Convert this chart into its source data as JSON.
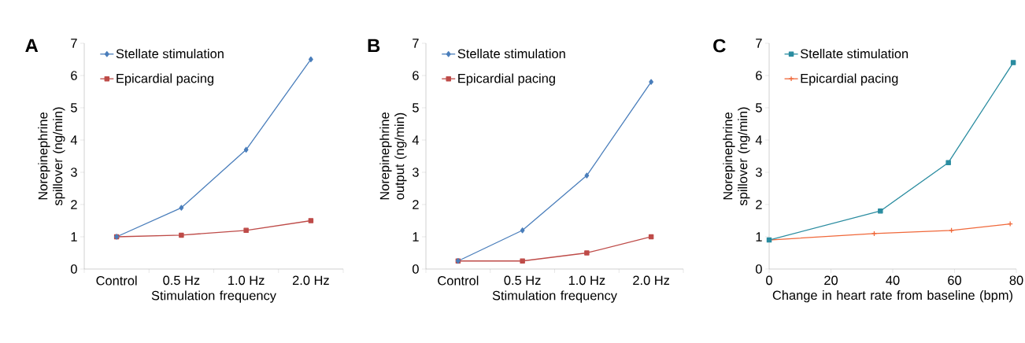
{
  "chart_data": [
    {
      "type": "line",
      "title": "A",
      "xlabel": "Stimulation frequency",
      "ylabel": "Norepinephrine spillover (ng/min)",
      "categories": [
        "Control",
        "0.5 Hz",
        "1.0 Hz",
        "2.0 Hz"
      ],
      "ylim": [
        0,
        7
      ],
      "yticks": [
        0,
        1,
        2,
        3,
        4,
        5,
        6,
        7
      ],
      "legend": "top left",
      "series": [
        {
          "name": "Stellate stimulation",
          "color": "#4a7ebb",
          "marker": "diamond",
          "values": [
            1.0,
            1.9,
            3.7,
            6.5
          ]
        },
        {
          "name": "Epicardial pacing",
          "color": "#be4b48",
          "marker": "square",
          "values": [
            1.0,
            1.05,
            1.2,
            1.5
          ]
        }
      ]
    },
    {
      "type": "line",
      "title": "B",
      "xlabel": "Stimulation frequency",
      "ylabel": "Norepinephrine output (ng/min)",
      "categories": [
        "Control",
        "0.5 Hz",
        "1.0 Hz",
        "2.0 Hz"
      ],
      "ylim": [
        0,
        7
      ],
      "yticks": [
        0,
        1,
        2,
        3,
        4,
        5,
        6,
        7
      ],
      "legend": "top left",
      "series": [
        {
          "name": "Stellate stimulation",
          "color": "#4a7ebb",
          "marker": "diamond",
          "values": [
            0.25,
            1.2,
            2.9,
            5.8
          ]
        },
        {
          "name": "Epicardial pacing",
          "color": "#be4b48",
          "marker": "square",
          "values": [
            0.25,
            0.25,
            0.5,
            1.0
          ]
        }
      ]
    },
    {
      "type": "line",
      "title": "C",
      "xlabel": "Change in heart rate from baseline (bpm)",
      "ylabel": "Norepinephrine spillover (ng/min)",
      "xlim": [
        0,
        80
      ],
      "xticks": [
        0,
        20,
        40,
        60,
        80
      ],
      "ylim": [
        0,
        7
      ],
      "yticks": [
        0,
        1,
        2,
        3,
        4,
        5,
        6,
        7
      ],
      "legend": "top left",
      "series": [
        {
          "name": "Stellate stimulation",
          "color": "#2a8ca0",
          "marker": "square",
          "x": [
            0,
            36,
            58,
            79
          ],
          "values": [
            0.9,
            1.8,
            3.3,
            6.4
          ]
        },
        {
          "name": "Epicardial pacing",
          "color": "#f0683a",
          "marker": "cross",
          "x": [
            0,
            34,
            59,
            78
          ],
          "values": [
            0.9,
            1.1,
            1.2,
            1.4
          ]
        }
      ]
    }
  ]
}
